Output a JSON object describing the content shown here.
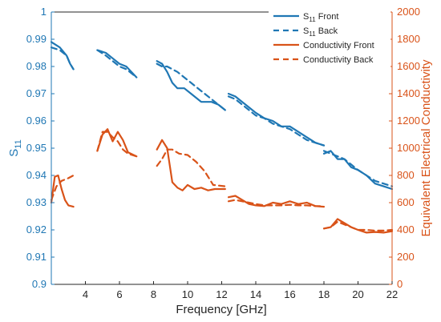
{
  "chart_data": {
    "type": "line",
    "title": "",
    "xlabel": "Frequency [GHz]",
    "ylabel_left": "S11",
    "ylabel_right": "Equivalent Electrical Conductivity",
    "xlim": [
      2,
      22
    ],
    "ylim_left": [
      0.9,
      1.0
    ],
    "ylim_right": [
      0,
      2000
    ],
    "x_ticks": [
      "4",
      "6",
      "8",
      "10",
      "12",
      "14",
      "16",
      "18",
      "20",
      "22"
    ],
    "y_left_ticks": [
      "0.9",
      "0.91",
      "0.92",
      "0.93",
      "0.94",
      "0.95",
      "0.96",
      "0.97",
      "0.98",
      "0.99",
      "1"
    ],
    "y_right_ticks": [
      "0",
      "200",
      "400",
      "600",
      "800",
      "1000",
      "1200",
      "1400",
      "1600",
      "1800",
      "2000"
    ],
    "grid": false,
    "legend_position": "top-right",
    "colors": {
      "s11": "#1f77b4",
      "conductivity": "#d95319",
      "overlap": "#a07a20",
      "axis": "#262626"
    },
    "series": [
      {
        "name": "S11 Front",
        "axis": "left",
        "style": "solid",
        "segments": [
          {
            "x": [
              2.0,
              2.5,
              2.9,
              3.1,
              3.3
            ],
            "y": [
              0.989,
              0.987,
              0.984,
              0.981,
              0.979
            ]
          },
          {
            "x": [
              4.7,
              5.2,
              5.6,
              6.0,
              6.4,
              7.0
            ],
            "y": [
              0.986,
              0.985,
              0.983,
              0.981,
              0.98,
              0.976
            ]
          },
          {
            "x": [
              8.2,
              8.5,
              8.8,
              9.1,
              9.4,
              9.8,
              10.2,
              10.8,
              11.4,
              11.8,
              12.2
            ],
            "y": [
              0.982,
              0.981,
              0.978,
              0.974,
              0.972,
              0.972,
              0.97,
              0.967,
              0.967,
              0.966,
              0.964
            ]
          },
          {
            "x": [
              12.4,
              12.8,
              13.2,
              13.6,
              14.0,
              14.5,
              15.0,
              15.5,
              16.0,
              16.5,
              17.0,
              17.5,
              18.0
            ],
            "y": [
              0.97,
              0.969,
              0.967,
              0.965,
              0.963,
              0.961,
              0.96,
              0.958,
              0.958,
              0.956,
              0.954,
              0.952,
              0.951
            ]
          },
          {
            "x": [
              18.0,
              18.4,
              18.8,
              19.2,
              19.6,
              20.0,
              20.5,
              21.0,
              21.5,
              22.0
            ],
            "y": [
              0.948,
              0.949,
              0.946,
              0.946,
              0.943,
              0.942,
              0.94,
              0.937,
              0.936,
              0.935
            ]
          }
        ]
      },
      {
        "name": "S11 Back",
        "axis": "left",
        "style": "dashed",
        "segments": [
          {
            "x": [
              2.0,
              2.5,
              2.9,
              3.1,
              3.3
            ],
            "y": [
              0.987,
              0.986,
              0.984,
              0.981,
              0.979
            ]
          },
          {
            "x": [
              4.7,
              5.2,
              5.6,
              6.0,
              6.4,
              7.0
            ],
            "y": [
              0.986,
              0.984,
              0.982,
              0.98,
              0.979,
              0.976
            ]
          },
          {
            "x": [
              8.2,
              8.5,
              8.8,
              9.1,
              9.4,
              9.8,
              10.2,
              10.8,
              11.4,
              11.8,
              12.2
            ],
            "y": [
              0.981,
              0.98,
              0.98,
              0.979,
              0.978,
              0.976,
              0.974,
              0.971,
              0.968,
              0.966,
              0.964
            ]
          },
          {
            "x": [
              12.4,
              12.8,
              13.2,
              13.6,
              14.0,
              14.5,
              15.0,
              15.5,
              16.0,
              16.5,
              17.0,
              17.5,
              18.0
            ],
            "y": [
              0.969,
              0.968,
              0.966,
              0.964,
              0.962,
              0.961,
              0.959,
              0.958,
              0.957,
              0.955,
              0.953,
              0.952,
              0.951
            ]
          },
          {
            "x": [
              18.0,
              18.4,
              18.8,
              19.2,
              19.6,
              20.0,
              20.5,
              21.0,
              21.5,
              22.0
            ],
            "y": [
              0.949,
              0.948,
              0.947,
              0.946,
              0.944,
              0.942,
              0.94,
              0.938,
              0.937,
              0.936
            ]
          }
        ]
      },
      {
        "name": "Conductivity Front",
        "axis": "right",
        "style": "solid",
        "segments": [
          {
            "x": [
              2.0,
              2.2,
              2.4,
              2.6,
              2.8,
              3.0,
              3.3
            ],
            "y": [
              600,
              790,
              800,
              700,
              620,
              580,
              570
            ]
          },
          {
            "x": [
              4.7,
              5.0,
              5.3,
              5.6,
              5.9,
              6.2,
              6.5,
              7.0
            ],
            "y": [
              980,
              1100,
              1140,
              1050,
              1120,
              1060,
              970,
              940
            ]
          },
          {
            "x": [
              8.2,
              8.5,
              8.8,
              9.1,
              9.4,
              9.7,
              10.0,
              10.4,
              10.8,
              11.2,
              11.6,
              12.2
            ],
            "y": [
              990,
              1060,
              1000,
              750,
              710,
              690,
              730,
              700,
              710,
              690,
              700,
              700
            ]
          },
          {
            "x": [
              12.4,
              12.8,
              13.2,
              13.6,
              14.0,
              14.5,
              15.0,
              15.5,
              16.0,
              16.5,
              17.0,
              17.5,
              18.0
            ],
            "y": [
              640,
              650,
              620,
              590,
              580,
              575,
              600,
              590,
              610,
              590,
              600,
              575,
              570
            ]
          },
          {
            "x": [
              18.0,
              18.4,
              18.8,
              19.2,
              19.6,
              20.0,
              20.5,
              21.0,
              21.5,
              22.0
            ],
            "y": [
              410,
              420,
              480,
              450,
              420,
              400,
              380,
              385,
              380,
              390
            ]
          }
        ]
      },
      {
        "name": "Conductivity Back",
        "axis": "right",
        "style": "dashed",
        "segments": [
          {
            "x": [
              2.0,
              2.3,
              2.6,
              3.0,
              3.3
            ],
            "y": [
              620,
              720,
              760,
              780,
              800
            ]
          },
          {
            "x": [
              4.7,
              5.0,
              5.3,
              5.6,
              5.9,
              6.2,
              6.5,
              7.0
            ],
            "y": [
              980,
              1120,
              1120,
              1080,
              1050,
              990,
              960,
              940
            ]
          },
          {
            "x": [
              8.2,
              8.5,
              8.8,
              9.1,
              9.5,
              10.0,
              10.5,
              11.0,
              11.5,
              12.2
            ],
            "y": [
              870,
              920,
              990,
              990,
              960,
              950,
              900,
              830,
              730,
              720
            ]
          },
          {
            "x": [
              12.4,
              12.8,
              13.2,
              13.6,
              14.0,
              14.5,
              15.0,
              15.5,
              16.0,
              16.5,
              17.0,
              17.5,
              18.0
            ],
            "y": [
              610,
              620,
              610,
              600,
              590,
              580,
              580,
              580,
              585,
              580,
              580,
              575,
              575
            ]
          },
          {
            "x": [
              18.0,
              18.4,
              18.8,
              19.2,
              19.6,
              20.0,
              20.5,
              21.0,
              21.5,
              22.0
            ],
            "y": [
              410,
              420,
              460,
              440,
              420,
              400,
              400,
              395,
              395,
              400
            ]
          }
        ]
      }
    ],
    "legend": [
      {
        "prefix": "S",
        "sub": "11",
        "suffix": " Front",
        "style": "solid",
        "color": "#1f77b4"
      },
      {
        "prefix": "S",
        "sub": "11",
        "suffix": " Back",
        "style": "dashed",
        "color": "#1f77b4"
      },
      {
        "prefix": "Conductivity Front",
        "sub": "",
        "suffix": "",
        "style": "solid",
        "color": "#d95319"
      },
      {
        "prefix": "Conductivity Back",
        "sub": "",
        "suffix": "",
        "style": "dashed",
        "color": "#d95319"
      }
    ],
    "ylabel_left_parts": {
      "main": "S",
      "sub": "11"
    }
  }
}
